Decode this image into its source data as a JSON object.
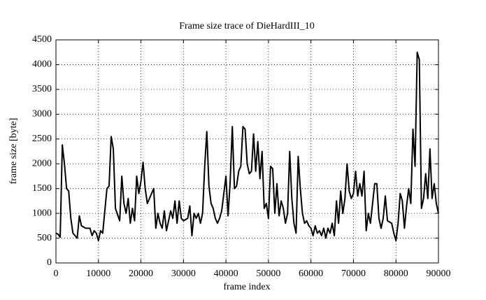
{
  "chart_data": {
    "type": "line",
    "title": "Frame size trace of DieHardIII_10",
    "xlabel": "frame index",
    "ylabel": "frame size [byte]",
    "x": [
      0,
      500,
      1000,
      1500,
      2000,
      2500,
      3000,
      3500,
      4000,
      4500,
      5000,
      5500,
      6000,
      7000,
      8000,
      8500,
      9000,
      9500,
      10000,
      10500,
      11000,
      12000,
      12500,
      13000,
      13500,
      14000,
      15000,
      15500,
      16000,
      16500,
      17000,
      17500,
      18000,
      18500,
      19000,
      19500,
      20000,
      20500,
      21000,
      21500,
      22000,
      23000,
      23500,
      24000,
      24500,
      25000,
      25500,
      26000,
      27000,
      27500,
      28000,
      28500,
      29000,
      29500,
      30000,
      31000,
      31500,
      32000,
      32500,
      33000,
      33500,
      34000,
      34500,
      35000,
      35500,
      36000,
      36500,
      37000,
      37500,
      38000,
      38500,
      39000,
      39500,
      40000,
      40500,
      41000,
      41500,
      42000,
      42500,
      43000,
      43500,
      44000,
      44500,
      45000,
      45500,
      46000,
      46500,
      47000,
      47500,
      48000,
      48500,
      49000,
      49500,
      50000,
      50500,
      51000,
      51500,
      52000,
      52500,
      53000,
      53500,
      54000,
      54500,
      55000,
      55500,
      56000,
      56500,
      57000,
      57500,
      58000,
      58500,
      59000,
      59500,
      60000,
      60500,
      61000,
      61500,
      62000,
      62500,
      63000,
      63500,
      64000,
      64500,
      65000,
      65500,
      66000,
      66500,
      67000,
      67500,
      68000,
      68500,
      69000,
      69500,
      70000,
      70500,
      71000,
      71500,
      72000,
      72500,
      73000,
      73500,
      74000,
      74500,
      75000,
      75500,
      76000,
      76500,
      77000,
      77500,
      78000,
      79000,
      79500,
      80000,
      80500,
      81000,
      81500,
      82000,
      82500,
      83000,
      83500,
      84000,
      84500,
      85000,
      85500,
      86000,
      86500,
      87000,
      87500,
      88000,
      88500,
      89000,
      89500,
      90000
    ],
    "series": [
      {
        "color": "#000000",
        "values": [
          600,
          580,
          520,
          2380,
          2000,
          1500,
          1450,
          900,
          600,
          550,
          500,
          950,
          750,
          700,
          700,
          550,
          650,
          600,
          450,
          650,
          600,
          1500,
          1550,
          2550,
          2300,
          1100,
          850,
          1750,
          1200,
          1000,
          1300,
          800,
          1100,
          850,
          1750,
          1400,
          1650,
          2030,
          1500,
          1200,
          1300,
          1500,
          700,
          1000,
          800,
          700,
          1050,
          650,
          1050,
          900,
          1250,
          800,
          1250,
          900,
          850,
          900,
          1150,
          550,
          1000,
          900,
          1000,
          800,
          1000,
          1950,
          2650,
          1550,
          1200,
          1100,
          900,
          800,
          900,
          1050,
          1400,
          1750,
          950,
          1650,
          2750,
          1500,
          1550,
          1850,
          1950,
          2750,
          2700,
          2000,
          1800,
          1850,
          2600,
          1850,
          2450,
          1700,
          2250,
          1100,
          1200,
          900,
          1950,
          1900,
          1000,
          1600,
          950,
          1250,
          1100,
          800,
          1000,
          2250,
          1300,
          800,
          600,
          2150,
          1500,
          1000,
          800,
          850,
          750,
          700,
          550,
          750,
          600,
          650,
          550,
          700,
          500,
          700,
          600,
          800,
          550,
          1250,
          800,
          1450,
          1000,
          1300,
          2000,
          1450,
          1300,
          1400,
          1850,
          1350,
          1600,
          1350,
          1850,
          650,
          1000,
          800,
          1200,
          1600,
          1600,
          900,
          700,
          900,
          1350,
          850,
          800,
          600,
          450,
          800,
          1400,
          1250,
          700,
          1150,
          1500,
          1200,
          2700,
          1950,
          4250,
          4100,
          1100,
          1300,
          1800,
          1300,
          2300,
          1300,
          1600,
          1200,
          1000
        ]
      }
    ],
    "xlim": [
      0,
      90000
    ],
    "ylim": [
      0,
      4500
    ],
    "xticks": [
      0,
      10000,
      20000,
      30000,
      40000,
      50000,
      60000,
      70000,
      80000,
      90000
    ],
    "yticks": [
      0,
      500,
      1000,
      1500,
      2000,
      2500,
      3000,
      3500,
      4000,
      4500
    ],
    "grid": true
  }
}
